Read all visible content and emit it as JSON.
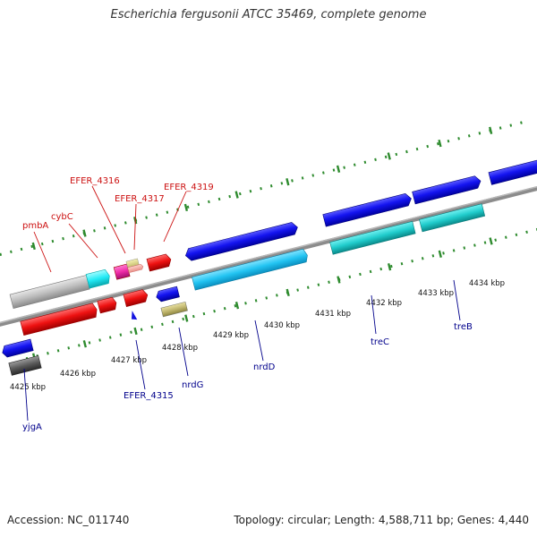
{
  "title": "Escherichia fergusonii ATCC 35469, complete genome",
  "footer": {
    "accession": "Accession: NC_011740",
    "topology": "Topology: circular; Length: 4,588,711 bp; Genes: 4,440"
  },
  "colors": {
    "backbone": "#8c8c8c",
    "tick": "#2e8b2e",
    "forward_label": "#cc1111",
    "reverse_label": "#00008b"
  },
  "scale_ticks": [
    "4425 kbp",
    "4426 kbp",
    "4427 kbp",
    "4428 kbp",
    "4429 kbp",
    "4430 kbp",
    "4431 kbp",
    "4432 kbp",
    "4433 kbp",
    "4434 kbp"
  ],
  "gene_labels_forward": [
    "pmbA",
    "cybC",
    "EFER_4316",
    "EFER_4317",
    "EFER_4319"
  ],
  "gene_labels_reverse": [
    "yjgA",
    "EFER_4315",
    "nrdG",
    "nrdD",
    "treC",
    "treB"
  ]
}
